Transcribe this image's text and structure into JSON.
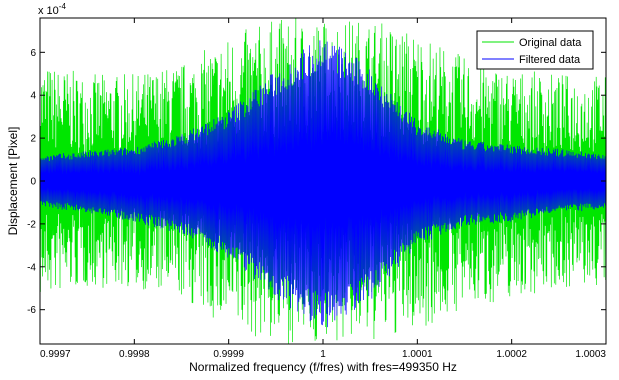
{
  "chart_data": {
    "type": "line",
    "xlabel": "Normalized frequency (f/fres) with fres=499350 Hz",
    "ylabel": "Displacement [Pixel]",
    "y_multiplier_label": "x 10",
    "y_multiplier_exponent": "-4",
    "xlim": [
      0.9997,
      1.0003
    ],
    "ylim": [
      -7.6,
      7.6
    ],
    "y_scale": 0.0001,
    "grid": false,
    "legend_position": "top-right",
    "x_ticks": [
      0.9997,
      0.9998,
      0.9999,
      1.0,
      1.0001,
      1.0002,
      1.0003
    ],
    "x_tick_labels": [
      "0.9997",
      "0.9998",
      "0.9999",
      "1",
      "1.0001",
      "1.0002",
      "1.0003"
    ],
    "y_ticks": [
      -6,
      -4,
      -2,
      0,
      2,
      4,
      6
    ],
    "y_tick_labels": [
      "-6",
      "-4",
      "-2",
      "0",
      "2",
      "4",
      "6"
    ],
    "series": [
      {
        "name": "Original data",
        "color": "#00e600",
        "envelope": {
          "x": [
            0.9997,
            0.99975,
            0.9998,
            0.99985,
            0.9999,
            0.99995,
            1.0,
            1.00005,
            1.0001,
            1.00015,
            1.0002,
            1.00025,
            1.0003
          ],
          "upper": [
            5.5,
            5.0,
            5.0,
            5.5,
            6.8,
            7.6,
            7.6,
            7.6,
            7.0,
            5.8,
            5.2,
            5.0,
            5.0
          ],
          "lower": [
            -5.5,
            -5.0,
            -5.0,
            -5.5,
            -7.0,
            -7.6,
            -7.6,
            -7.6,
            -7.0,
            -6.0,
            -5.5,
            -5.0,
            -5.0
          ]
        }
      },
      {
        "name": "Filtered data",
        "color": "#0000ff",
        "envelope": {
          "x": [
            0.9997,
            0.99975,
            0.9998,
            0.99985,
            0.9999,
            0.99995,
            1.0,
            1.00005,
            1.0001,
            1.00015,
            1.0002,
            1.00025,
            1.0003
          ],
          "upper": [
            1.2,
            1.4,
            1.6,
            2.2,
            3.3,
            5.2,
            6.9,
            5.3,
            2.8,
            1.9,
            1.7,
            1.5,
            1.3
          ],
          "lower": [
            -1.2,
            -1.5,
            -1.9,
            -2.5,
            -3.6,
            -5.5,
            -7.0,
            -5.6,
            -3.0,
            -2.1,
            -1.9,
            -1.5,
            -1.3
          ]
        }
      }
    ]
  }
}
